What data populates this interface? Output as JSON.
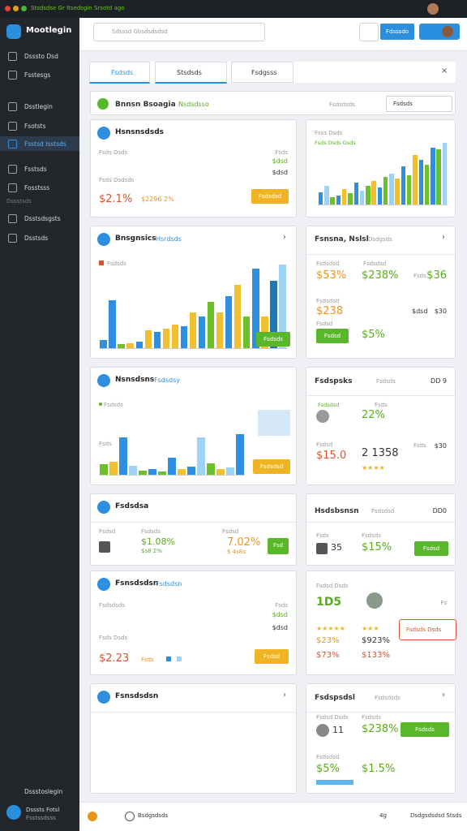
{
  "topbar": {
    "title": "Stsdsdse Gr Itsedsgin Srsotd ago"
  },
  "sidebar": {
    "brand": "Mootlegin",
    "items": [
      "Dsssto Dsd",
      "Fsstesgs",
      "Dsstlegin",
      "Fsotsts",
      "Fsstsd Isstsds",
      "Fsstsds",
      "Fosstsss"
    ],
    "section": "Dssstsds",
    "items2": [
      "Dsstsdsgsts",
      "Dsstsds"
    ],
    "footer_link": "Dssstoslegin",
    "user_name": "Dsssts Fotsl",
    "user_role": "Fsstssdsss"
  },
  "header": {
    "search": "Sdsssd Gbsdsdsdsd",
    "button": "Fdsssdo"
  },
  "tabs": [
    "Fsdsds",
    "Stsdsds",
    "Fsdgsss"
  ],
  "section": {
    "title": "Bnnsn Bsoagia",
    "badge": "Nsdsdsso",
    "meta": "Fsdsdsds",
    "button": "Fsdsds"
  },
  "cards": [
    {
      "title": "Hsnsnsdsds",
      "texts": [
        "Fsds Dsds",
        "Fsds",
        "$dsd",
        "$dsd",
        "Fsds Dsdsds",
        "$2.1%",
        "$2296 2%"
      ],
      "button": "Fsdsdsd"
    },
    {
      "title": "Fsss Dsds",
      "texts": [
        "Fsds Dsds Gsds"
      ]
    },
    {
      "title": "Bnsgnsics",
      "texts": [
        "Hsrdsds",
        "Fsdsds"
      ],
      "button": "Fsdsds"
    },
    {
      "title": "Fsnsna, Nslsl",
      "texts": [
        "Dsdgsds",
        "Fsdsdsd",
        "Fsdsdsd",
        "$53%",
        "$238%",
        "Fsds",
        "$36",
        "Fsdsdsd",
        "$238",
        "$dsd",
        "$30",
        "Fsdsd",
        "$5%"
      ],
      "button": "Fsdsd"
    },
    {
      "title": "Nsnsdsns",
      "texts": [
        "Fsdsdsy",
        "Fsdsds",
        "Fsds"
      ],
      "button": "Fsdsdsd"
    },
    {
      "title": "Fsdspsks",
      "texts": [
        "Fsdsds",
        "DD 9",
        "Fsdsdsd",
        "Fsds",
        "22%",
        "Fsdsd",
        "Fsds",
        "2 1358",
        "$30",
        "$15.0"
      ]
    },
    {
      "title": "Fsdsdsa",
      "texts": [
        "Fsdsd",
        "Fsdsds",
        "$1.08%",
        "$s8 2%",
        "Fsdsd",
        "7.02%",
        "$ 4s8s"
      ],
      "button": "Fsd"
    },
    {
      "title": "Hsdsbsnsn",
      "texts": [
        "Fsdsdsd",
        "DD0",
        "Fsds",
        "Fsdsds",
        "35",
        "$15%"
      ],
      "button": "Fsdsd"
    },
    {
      "title": "Fsnsdsdsn",
      "texts": [
        "Fsdsdsn",
        "Fsdsdsds",
        "Fsds",
        "$dsd",
        "Fsds Dsds",
        "$dsd",
        "$2.23",
        "Fsds"
      ],
      "button": "Fsdsd"
    },
    {
      "title": "Fsdsd Dsds",
      "texts": [
        "1D5",
        "Fs",
        "$23%",
        "$923%",
        "$73%",
        "$133%"
      ],
      "button": "Fsdsds Dsds"
    },
    {
      "title": "Fsnsdsdsn",
      "texts": []
    },
    {
      "title": "Fsdspsdsl",
      "texts": [
        "Fsdsdsds",
        "Fsdsd Dsds",
        "Fsdsds",
        "11",
        "$238%",
        "Fsdsdsd",
        "$5%",
        "$1.5%"
      ],
      "button": "Fsdsds"
    }
  ],
  "charts": [
    {
      "ylim": [
        0,
        100
      ],
      "values": [
        20,
        30,
        12,
        15,
        25,
        18,
        35,
        22,
        30,
        38,
        28,
        45,
        50,
        42,
        62,
        48,
        80,
        72,
        65,
        92,
        90,
        100
      ],
      "colors": [
        "#2e8fe0",
        "#9fd3f5",
        "#6cc12a",
        "#2e8fe0",
        "#f0c030",
        "#6cc12a",
        "#2e8fe0",
        "#9fd3f5",
        "#6cc12a",
        "#f0c030",
        "#2e8fe0",
        "#6cc12a",
        "#9fd3f5",
        "#f0c030",
        "#2e8fe0",
        "#6cc12a",
        "#f0c030",
        "#2e8fe0",
        "#6cc12a",
        "#2e8fe0",
        "#6cc12a",
        "#9fd3f5"
      ]
    },
    {
      "ylim": [
        0,
        100
      ],
      "values": [
        10,
        60,
        5,
        6,
        8,
        22,
        20,
        25,
        30,
        28,
        45,
        40,
        58,
        45,
        65,
        80,
        40,
        100,
        40,
        85,
        105
      ],
      "colors": [
        "#2e8fe0",
        "#2e8fe0",
        "#6cc12a",
        "#f0c030",
        "#2e8fe0",
        "#f0c030",
        "#2e8fe0",
        "#f0c030",
        "#f0c030",
        "#2e8fe0",
        "#f0c030",
        "#2e8fe0",
        "#6cc12a",
        "#f0c030",
        "#2e8fe0",
        "#f0c030",
        "#6cc12a",
        "#2e8fe0",
        "#f0c030",
        "#1f77b4",
        "#9fd3f5"
      ]
    },
    {
      "ylim": [
        0,
        100
      ],
      "values": [
        28,
        35,
        100,
        25,
        10,
        15,
        8,
        45,
        15,
        22,
        100,
        30,
        15,
        20,
        108
      ],
      "colors": [
        "#6cc12a",
        "#f0c030",
        "#2e8fe0",
        "#9fd3f5",
        "#6cc12a",
        "#2e8fe0",
        "#6cc12a",
        "#2e8fe0",
        "#f0c030",
        "#2e8fe0",
        "#9fd3f5",
        "#6cc12a",
        "#f0c030",
        "#9fd3f5",
        "#2e8fe0"
      ]
    }
  ],
  "bottombar": {
    "left": "Bsdgsdsds",
    "count": "4g",
    "right": "Dsdgsdsdsd Stsds"
  }
}
